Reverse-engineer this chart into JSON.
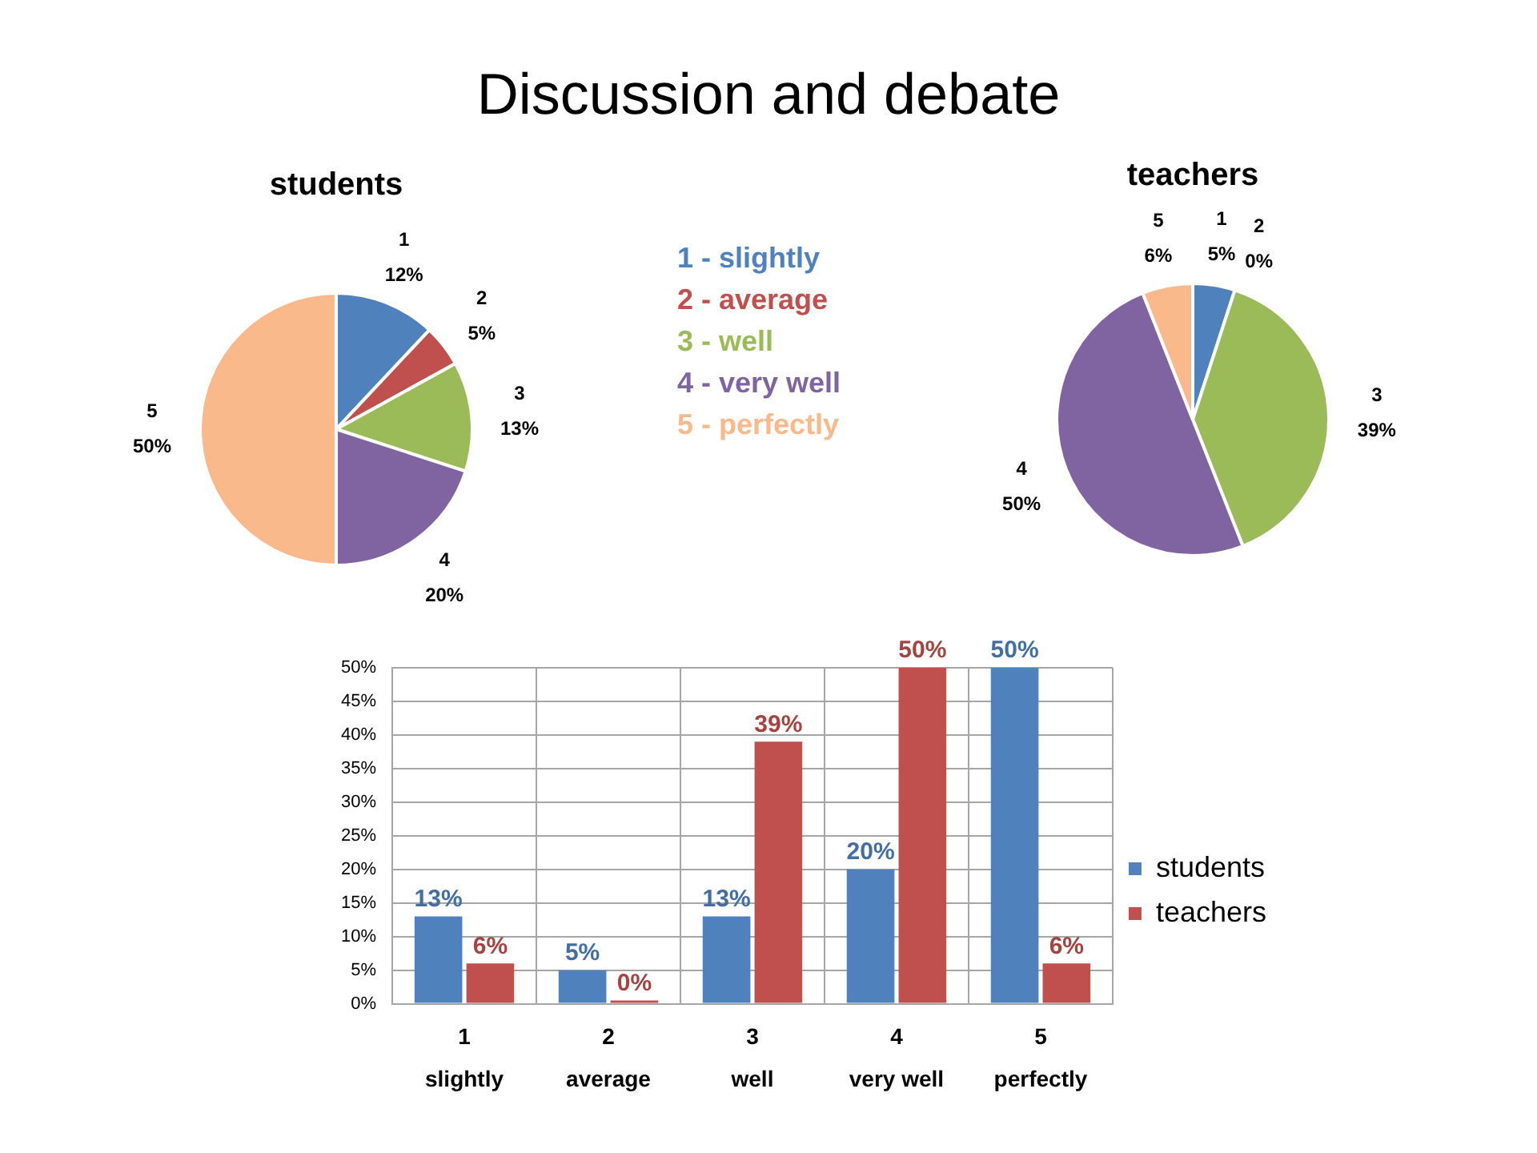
{
  "chart_data": [
    {
      "type": "other",
      "title": "Discussion and debate"
    },
    {
      "type": "pie",
      "title": "students",
      "categories": [
        "1",
        "2",
        "3",
        "4",
        "5"
      ],
      "values": [
        12,
        5,
        13,
        20,
        50
      ],
      "value_labels": [
        "12%",
        "5%",
        "13%",
        "20%",
        "50%"
      ],
      "colors": [
        "#4f81bd",
        "#c0504d",
        "#9bbb59",
        "#8064a2",
        "#f9b98b"
      ],
      "annotations": [
        "1 - slightly",
        "2 - average",
        "3 - well",
        "4 - very well",
        "5 - perfectly"
      ]
    },
    {
      "type": "pie",
      "title": "teachers",
      "categories": [
        "1",
        "2",
        "3",
        "4",
        "5"
      ],
      "values": [
        5,
        0,
        39,
        50,
        6
      ],
      "value_labels": [
        "5%",
        "0%",
        "39%",
        "50%",
        "6%"
      ],
      "colors": [
        "#4f81bd",
        "#c0504d",
        "#9bbb59",
        "#8064a2",
        "#f9b98b"
      ]
    },
    {
      "type": "bar",
      "categories": [
        "1\nslightly",
        "2\naverage",
        "3\nwell",
        "4\nvery well",
        "5\nperfectly"
      ],
      "series": [
        {
          "name": "students",
          "color": "#4f81bd",
          "values": [
            13,
            5,
            13,
            20,
            50
          ],
          "value_labels": [
            "13%",
            "5%",
            "13%",
            "20%",
            "50%"
          ]
        },
        {
          "name": "teachers",
          "color": "#c0504d",
          "values": [
            6,
            0,
            39,
            50,
            6
          ],
          "value_labels": [
            "6%",
            "0%",
            "39%",
            "50%",
            "6%"
          ]
        }
      ],
      "ylim": [
        0,
        50
      ],
      "yticks": [
        {
          "value": 0,
          "label": "0%"
        },
        {
          "value": 5,
          "label": "5%"
        },
        {
          "value": 10,
          "label": "10%"
        },
        {
          "value": 15,
          "label": "15%"
        },
        {
          "value": 20,
          "label": "20%"
        },
        {
          "value": 25,
          "label": "25%"
        },
        {
          "value": 30,
          "label": "30%"
        },
        {
          "value": 35,
          "label": "35%"
        },
        {
          "value": 40,
          "label": "40%"
        },
        {
          "value": 45,
          "label": "45%"
        },
        {
          "value": 50,
          "label": "50%"
        }
      ],
      "grid": true,
      "legend": "right"
    }
  ]
}
